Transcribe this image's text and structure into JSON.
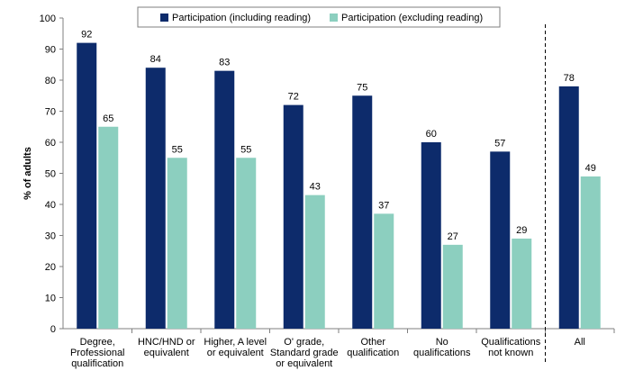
{
  "chart_data": {
    "type": "bar",
    "categories": [
      [
        "Degree,",
        "Professional",
        "qualification"
      ],
      [
        "HNC/HND or",
        "equivalent"
      ],
      [
        "Higher, A level",
        "or equivalent"
      ],
      [
        "O' grade,",
        "Standard grade",
        "or equivalent"
      ],
      [
        "Other",
        "qualification"
      ],
      [
        "No",
        "qualifications"
      ],
      [
        "Qualifications",
        "not known"
      ],
      [
        "All"
      ]
    ],
    "series": [
      {
        "name": "Participation (including reading)",
        "color": "#0d2b6b",
        "values": [
          92,
          84,
          83,
          72,
          75,
          60,
          57,
          78
        ]
      },
      {
        "name": "Participation (excluding reading)",
        "color": "#8ccfbf",
        "values": [
          65,
          55,
          55,
          43,
          37,
          27,
          29,
          49
        ]
      }
    ],
    "ylabel": "% of adults",
    "ylim": [
      0,
      100
    ],
    "yticks": [
      0,
      10,
      20,
      30,
      40,
      50,
      60,
      70,
      80,
      90,
      100
    ],
    "grid": false,
    "legend_position": "top",
    "separator_before_category_index": 7
  }
}
